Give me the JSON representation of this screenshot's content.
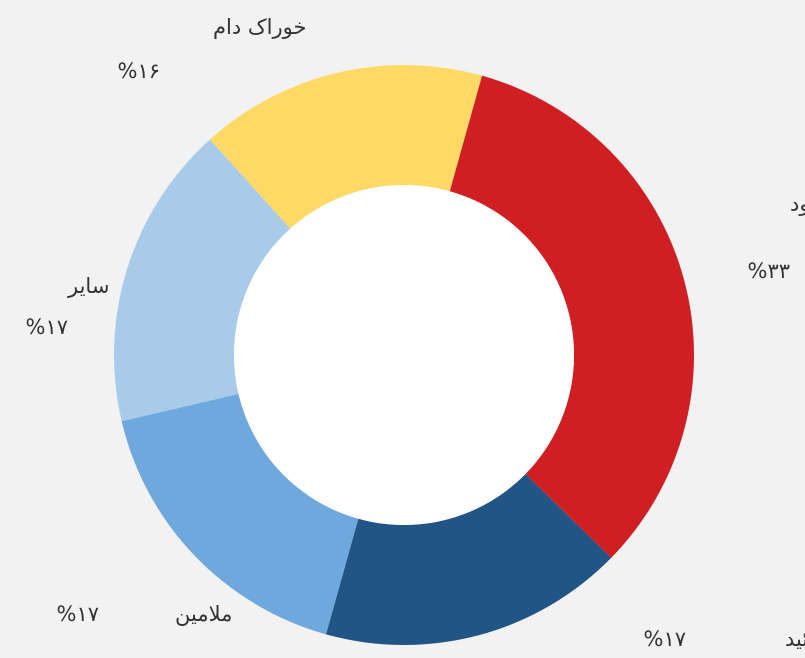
{
  "chart_data": {
    "type": "donut",
    "categories": [
      "کود",
      "فرمالدئید",
      "ملامین",
      "سایر",
      "خوراک دام"
    ],
    "values": [
      33,
      17,
      17,
      17,
      16
    ],
    "value_labels": [
      "%۳۳",
      "%۱۷",
      "%۱۷",
      "%۱۷",
      "%۱۶"
    ],
    "colors": [
      "#d01f23",
      "#215586",
      "#6fa8dc",
      "#a9cbea",
      "#ffd966"
    ]
  }
}
